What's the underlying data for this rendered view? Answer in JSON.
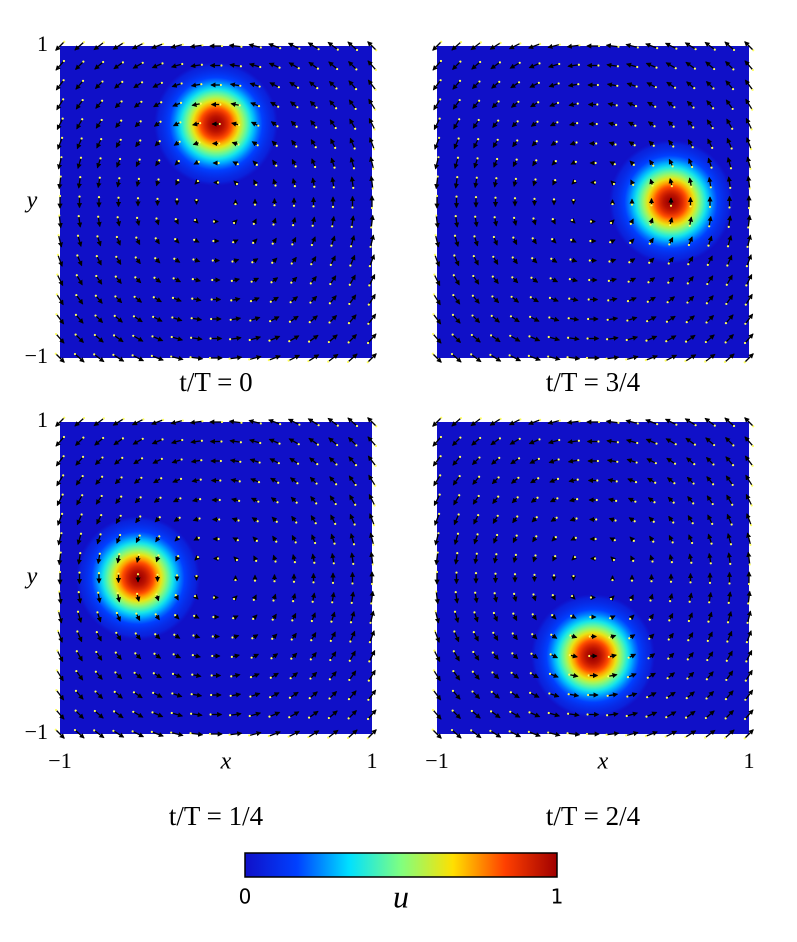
{
  "chart_data": [
    {
      "type": "heatmap",
      "title": "t/T = 0",
      "ylabel": "y",
      "xlim": [
        -1,
        1
      ],
      "ylim": [
        -1,
        1
      ],
      "yticks": [
        1,
        {
          "value": -1,
          "label": "−1"
        }
      ],
      "center": {
        "x": 0,
        "y": 0.5
      }
    },
    {
      "type": "heatmap",
      "title": "t/T = 3/4",
      "xlim": [
        -1,
        1
      ],
      "ylim": [
        -1,
        1
      ],
      "center": {
        "x": 0.5,
        "y": 0
      }
    },
    {
      "type": "heatmap",
      "title": "t/T = 1/4",
      "xlabel": "x",
      "ylabel": "y",
      "xlim": [
        -1,
        1
      ],
      "ylim": [
        -1,
        1
      ],
      "xticks": [
        {
          "value": -1,
          "label": "−1"
        },
        1
      ],
      "yticks": [
        1,
        {
          "value": -1,
          "label": "−1"
        }
      ],
      "center": {
        "x": -0.5,
        "y": 0
      }
    },
    {
      "type": "heatmap",
      "title": "t/T = 2/4",
      "xlabel": "x",
      "xlim": [
        -1,
        1
      ],
      "ylim": [
        -1,
        1
      ],
      "xticks": [
        {
          "value": -1,
          "label": "−1"
        },
        1
      ],
      "center": {
        "x": 0,
        "y": -0.5
      }
    },
    {
      "type": "colorbar",
      "label": "u",
      "clim": [
        0,
        1
      ],
      "ticks": [
        0,
        1
      ],
      "colormap": [
        "#1010c8",
        "#0040ff",
        "#00e0ff",
        "#80ff80",
        "#ffe000",
        "#ff4000",
        "#a00000"
      ]
    }
  ]
}
